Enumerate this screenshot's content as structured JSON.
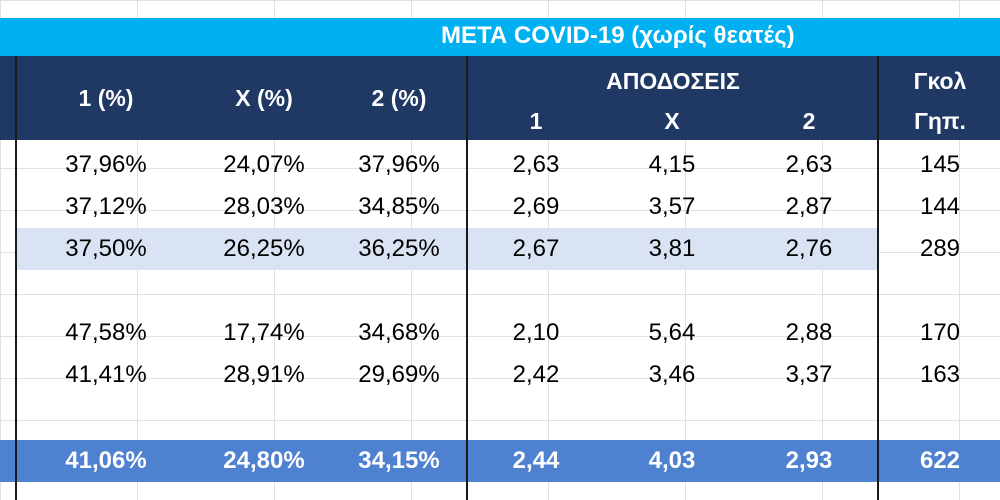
{
  "banner": {
    "title": "ΜΕΤΑ COVID-19 (χωρίς θεατές)"
  },
  "header": {
    "col1": "1 (%)",
    "colx": "Χ (%)",
    "col2": "2 (%)",
    "odds_group": "ΑΠΟΔΟΣΕΙΣ",
    "odds1": "1",
    "oddsx": "Χ",
    "odds2": "2",
    "goals_line1": "Γκολ",
    "goals_line2": "Γηπ."
  },
  "rows": [
    {
      "p1": "37,96%",
      "px": "24,07%",
      "p2": "37,96%",
      "o1": "2,63",
      "ox": "4,15",
      "o2": "2,63",
      "goals": "145"
    },
    {
      "p1": "37,12%",
      "px": "28,03%",
      "p2": "34,85%",
      "o1": "2,69",
      "ox": "3,57",
      "o2": "2,87",
      "goals": "144"
    },
    {
      "p1": "37,50%",
      "px": "26,25%",
      "p2": "36,25%",
      "o1": "2,67",
      "ox": "3,81",
      "o2": "2,76",
      "goals": "289"
    },
    {
      "p1": "47,58%",
      "px": "17,74%",
      "p2": "34,68%",
      "o1": "2,10",
      "ox": "5,64",
      "o2": "2,88",
      "goals": "170"
    },
    {
      "p1": "41,41%",
      "px": "28,91%",
      "p2": "29,69%",
      "o1": "2,42",
      "ox": "3,46",
      "o2": "3,37",
      "goals": "163"
    },
    {
      "p1": "41,06%",
      "px": "24,80%",
      "p2": "34,15%",
      "o1": "2,44",
      "ox": "4,03",
      "o2": "2,93",
      "goals": "622"
    }
  ],
  "colors": {
    "banner": "#00b0f0",
    "header": "#1f3864",
    "subtotal_row": "#dae3f3",
    "total_row": "#4f81d1"
  }
}
